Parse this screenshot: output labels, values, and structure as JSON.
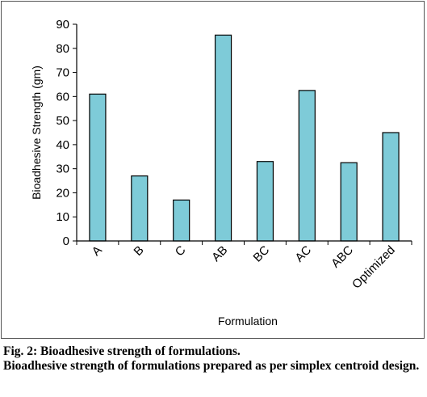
{
  "chart_data": {
    "type": "bar",
    "categories": [
      "A",
      "B",
      "C",
      "AB",
      "BC",
      "AC",
      "ABC",
      "Optimized"
    ],
    "values": [
      61,
      27,
      17,
      85.5,
      33,
      62.5,
      32.5,
      45
    ],
    "xlabel": "Formulation",
    "ylabel": "Bioadhesive Strength (gm)",
    "ylim": [
      0,
      90
    ],
    "yticks": [
      0,
      10,
      20,
      30,
      40,
      50,
      60,
      70,
      80,
      90
    ],
    "grid": false,
    "bar_color": "#7ecbd8",
    "bar_edge_color": "#000000"
  },
  "caption": {
    "figure_label": "Fig. 2: Bioadhesive strength of formulations.",
    "description": "Bioadhesive strength of formulations prepared as per simplex centroid design."
  }
}
